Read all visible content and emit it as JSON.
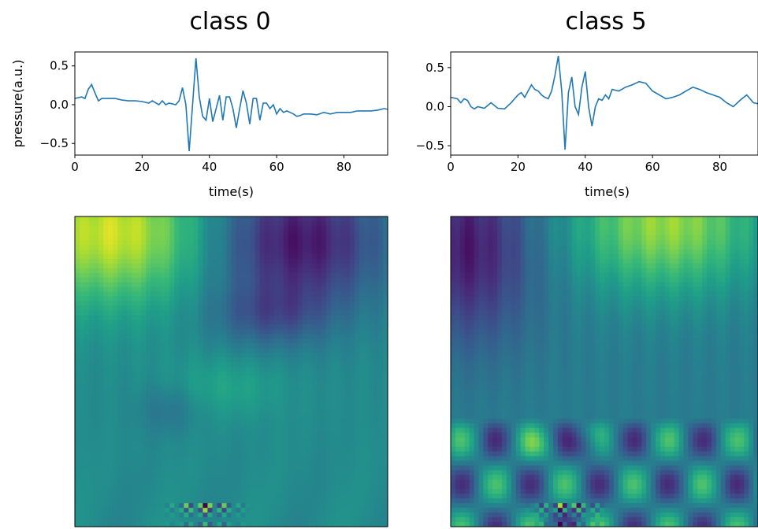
{
  "panels": [
    {
      "title": "class 0",
      "line_chart": {
        "type": "line",
        "xlabel": "time(s)",
        "ylabel": "pressure(a.u.)",
        "xlim": [
          0,
          93
        ],
        "ylim": [
          -0.65,
          0.68
        ],
        "xticks": [
          0,
          20,
          40,
          60,
          80
        ],
        "yticks": [
          -0.5,
          0.0,
          0.5
        ],
        "color": "#1f77b4",
        "x": [
          0,
          2,
          3,
          4,
          5,
          6,
          7,
          8,
          10,
          12,
          14,
          16,
          18,
          20,
          22,
          23,
          25,
          26,
          27,
          28,
          30,
          31,
          32,
          33,
          34,
          35,
          36,
          37,
          38,
          39,
          40,
          41,
          42,
          43,
          44,
          45,
          46,
          47,
          48,
          49,
          50,
          51,
          52,
          53,
          54,
          55,
          56,
          57,
          58,
          59,
          60,
          61,
          62,
          63,
          64,
          65,
          66,
          67,
          68,
          70,
          72,
          74,
          76,
          78,
          80,
          82,
          84,
          86,
          88,
          90,
          92,
          93
        ],
        "y": [
          0.08,
          0.1,
          0.08,
          0.2,
          0.26,
          0.15,
          0.05,
          0.08,
          0.08,
          0.08,
          0.06,
          0.05,
          0.05,
          0.04,
          0.02,
          0.05,
          0.0,
          0.05,
          0.0,
          0.02,
          0.0,
          0.05,
          0.22,
          0.0,
          -0.6,
          0.0,
          0.6,
          0.1,
          -0.15,
          -0.2,
          0.08,
          -0.22,
          -0.05,
          0.12,
          -0.2,
          0.1,
          0.1,
          -0.05,
          -0.3,
          -0.05,
          0.18,
          0.02,
          -0.25,
          0.08,
          0.08,
          -0.2,
          0.02,
          0.02,
          -0.05,
          0.0,
          -0.12,
          -0.05,
          -0.1,
          -0.08,
          -0.1,
          -0.12,
          -0.15,
          -0.14,
          -0.12,
          -0.12,
          -0.13,
          -0.1,
          -0.12,
          -0.1,
          -0.1,
          -0.1,
          -0.08,
          -0.08,
          -0.08,
          -0.07,
          -0.05,
          -0.06
        ]
      },
      "scalogram": {
        "type": "heatmap",
        "pattern": "class0"
      }
    },
    {
      "title": "class 5",
      "line_chart": {
        "type": "line",
        "xlabel": "time(s)",
        "ylabel": "",
        "xlim": [
          0,
          93
        ],
        "ylim": [
          -0.62,
          0.7
        ],
        "xticks": [
          0,
          20,
          40,
          60,
          80
        ],
        "yticks": [
          -0.5,
          0.0,
          0.5
        ],
        "color": "#1f77b4",
        "x": [
          0,
          2,
          3,
          4,
          5,
          6,
          7,
          8,
          10,
          12,
          14,
          16,
          18,
          19,
          20,
          21,
          22,
          23,
          24,
          25,
          26,
          27,
          28,
          29,
          30,
          31,
          32,
          33,
          34,
          35,
          36,
          37,
          38,
          39,
          40,
          41,
          42,
          43,
          44,
          45,
          46,
          47,
          48,
          50,
          52,
          54,
          56,
          58,
          60,
          62,
          64,
          66,
          68,
          70,
          72,
          74,
          76,
          78,
          80,
          82,
          84,
          86,
          88,
          90,
          93
        ],
        "y": [
          0.12,
          0.1,
          0.05,
          0.1,
          0.08,
          0.0,
          -0.03,
          0.0,
          -0.02,
          0.05,
          -0.02,
          -0.03,
          0.05,
          0.1,
          0.15,
          0.18,
          0.12,
          0.2,
          0.28,
          0.22,
          0.2,
          0.15,
          0.12,
          0.1,
          0.2,
          0.4,
          0.65,
          0.2,
          -0.55,
          0.18,
          0.38,
          0.0,
          -0.1,
          0.25,
          0.45,
          0.0,
          -0.25,
          0.0,
          0.1,
          0.08,
          0.15,
          0.1,
          0.22,
          0.2,
          0.25,
          0.28,
          0.32,
          0.3,
          0.2,
          0.15,
          0.1,
          0.12,
          0.15,
          0.2,
          0.25,
          0.22,
          0.18,
          0.15,
          0.12,
          0.05,
          0.0,
          0.08,
          0.15,
          0.05,
          0.02
        ]
      },
      "scalogram": {
        "type": "heatmap",
        "pattern": "class5"
      }
    }
  ]
}
